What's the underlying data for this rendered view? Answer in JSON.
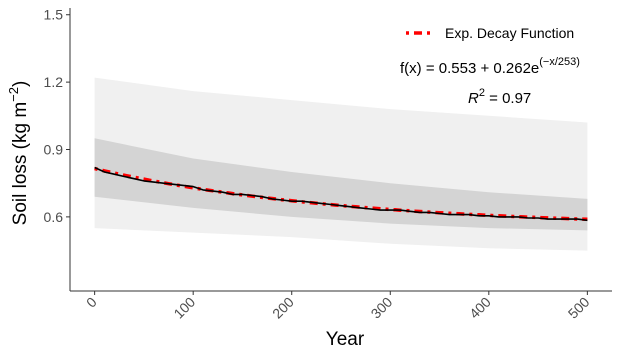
{
  "chart_data": {
    "type": "line",
    "xlabel": "Year",
    "ylabel_main": "Soil loss (kg m",
    "ylabel_sup": "−2",
    "ylabel_close": ")",
    "xlim": [
      -25,
      525
    ],
    "ylim": [
      0.27,
      1.53
    ],
    "x_ticks": [
      0,
      100,
      200,
      300,
      400,
      500
    ],
    "x_tick_labels": [
      "0",
      "100",
      "200",
      "300",
      "400",
      "500"
    ],
    "y_ticks": [
      0.6,
      0.9,
      1.2,
      1.5
    ],
    "y_tick_labels": [
      "0.6",
      "0.9",
      "1.2",
      "1.5"
    ],
    "legend": {
      "position": "top-right",
      "entries": [
        {
          "label": "Exp. Decay Function",
          "color": "#ff0000",
          "style": "dashed"
        }
      ]
    },
    "equation": {
      "lhs": "f(x) = 0.553 + 0.262e",
      "exponent": "(−x/253)",
      "r2_label": "R",
      "r2_sup": "2",
      "r2_value": " = 0.97"
    },
    "fit": {
      "a": 0.553,
      "b": 0.262,
      "tau": 253
    },
    "bands": [
      {
        "name": "outer",
        "color": "#f0f0f0",
        "x": [
          0,
          100,
          200,
          300,
          400,
          500
        ],
        "lower": [
          0.55,
          0.53,
          0.51,
          0.48,
          0.46,
          0.45
        ],
        "upper": [
          1.22,
          1.16,
          1.12,
          1.08,
          1.05,
          1.02
        ]
      },
      {
        "name": "inner",
        "color": "#d4d4d4",
        "x": [
          0,
          100,
          200,
          300,
          400,
          500
        ],
        "lower": [
          0.69,
          0.64,
          0.6,
          0.57,
          0.55,
          0.54
        ],
        "upper": [
          0.95,
          0.86,
          0.8,
          0.75,
          0.71,
          0.68
        ]
      }
    ],
    "series": [
      {
        "name": "observed",
        "color": "#000000",
        "x": [
          0,
          10,
          20,
          30,
          40,
          50,
          60,
          70,
          80,
          90,
          100,
          110,
          120,
          130,
          140,
          150,
          160,
          170,
          180,
          190,
          200,
          210,
          220,
          230,
          240,
          250,
          260,
          270,
          280,
          290,
          300,
          310,
          320,
          330,
          340,
          350,
          360,
          370,
          380,
          390,
          400,
          410,
          420,
          430,
          440,
          450,
          460,
          470,
          480,
          490,
          500
        ],
        "y": [
          0.82,
          0.8,
          0.79,
          0.78,
          0.77,
          0.76,
          0.755,
          0.75,
          0.745,
          0.74,
          0.735,
          0.72,
          0.715,
          0.71,
          0.7,
          0.7,
          0.695,
          0.69,
          0.68,
          0.675,
          0.67,
          0.67,
          0.665,
          0.66,
          0.655,
          0.65,
          0.645,
          0.64,
          0.635,
          0.63,
          0.63,
          0.63,
          0.625,
          0.62,
          0.62,
          0.615,
          0.61,
          0.61,
          0.61,
          0.605,
          0.605,
          0.6,
          0.6,
          0.6,
          0.595,
          0.595,
          0.59,
          0.59,
          0.59,
          0.59,
          0.585
        ]
      }
    ]
  }
}
